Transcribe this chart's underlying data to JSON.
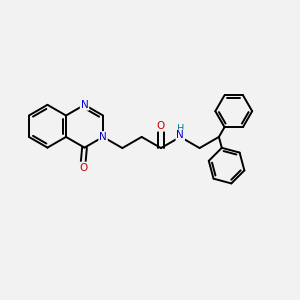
{
  "bg_color": "#f2f2f2",
  "bond_color": "#000000",
  "N_color": "#0000cc",
  "O_color": "#cc0000",
  "NH_color": "#008080",
  "line_width": 1.4,
  "figsize": [
    3.0,
    3.0
  ],
  "dpi": 100,
  "xlim": [
    0,
    10
  ],
  "ylim": [
    0,
    10
  ]
}
